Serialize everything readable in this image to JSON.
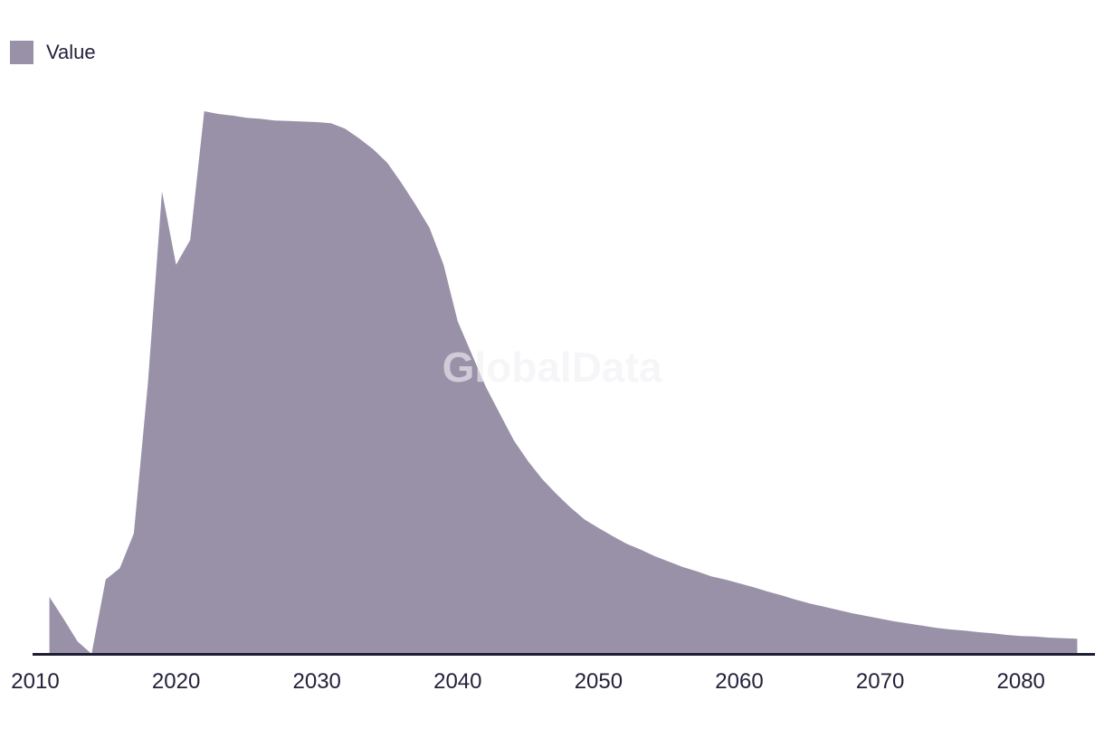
{
  "watermark": "GlobalData",
  "colors": {
    "series": "#9991a8",
    "axis": "#1e1e33",
    "text": "#23223a",
    "watermark": "#f2f1f4",
    "background": "#ffffff"
  },
  "legend": {
    "items": [
      {
        "label": "Value",
        "color": "#9991a8"
      }
    ]
  },
  "chart_data": {
    "type": "area",
    "title": "",
    "xlabel": "",
    "ylabel": "",
    "grid": false,
    "legend_position": "top-left",
    "watermark_text": "GlobalData",
    "x_axis": {
      "ticks": [
        2010,
        2020,
        2030,
        2040,
        2050,
        2060,
        2070,
        2080
      ],
      "min": 2009.7,
      "max": 2085.2
    },
    "y_axis": {
      "visible": false,
      "unit": "arbitrary (normalized, 2022 peak = 100)",
      "min": 0,
      "max": 120
    },
    "series": [
      {
        "name": "Value",
        "color": "#9991a8",
        "points": [
          [
            2011,
            10.5
          ],
          [
            2012,
            6.5
          ],
          [
            2013,
            2.3
          ],
          [
            2014,
            0
          ],
          [
            2015,
            13.7
          ],
          [
            2016,
            15.8
          ],
          [
            2017,
            22.2
          ],
          [
            2018,
            50.0
          ],
          [
            2019,
            85.2
          ],
          [
            2020,
            71.7
          ],
          [
            2021,
            76.3
          ],
          [
            2022,
            100
          ],
          [
            2023,
            99.5
          ],
          [
            2024,
            99.2
          ],
          [
            2025,
            98.8
          ],
          [
            2026,
            98.6
          ],
          [
            2027,
            98.3
          ],
          [
            2028,
            98.2
          ],
          [
            2029,
            98.1
          ],
          [
            2030,
            98.0
          ],
          [
            2031,
            97.8
          ],
          [
            2032,
            96.8
          ],
          [
            2033,
            95.0
          ],
          [
            2034,
            93.0
          ],
          [
            2035,
            90.5
          ],
          [
            2036,
            86.8
          ],
          [
            2037,
            82.8
          ],
          [
            2038,
            78.5
          ],
          [
            2039,
            71.7
          ],
          [
            2040,
            61.3
          ],
          [
            2041,
            55.2
          ],
          [
            2042,
            49.2
          ],
          [
            2043,
            44.2
          ],
          [
            2044,
            39.3
          ],
          [
            2045,
            35.5
          ],
          [
            2046,
            32.2
          ],
          [
            2047,
            29.5
          ],
          [
            2048,
            27.0
          ],
          [
            2049,
            24.8
          ],
          [
            2050,
            23.2
          ],
          [
            2051,
            21.7
          ],
          [
            2052,
            20.3
          ],
          [
            2053,
            19.2
          ],
          [
            2054,
            18.0
          ],
          [
            2055,
            17.0
          ],
          [
            2056,
            16.0
          ],
          [
            2057,
            15.2
          ],
          [
            2058,
            14.3
          ],
          [
            2059,
            13.7
          ],
          [
            2060,
            13.0
          ],
          [
            2061,
            12.3
          ],
          [
            2062,
            11.5
          ],
          [
            2063,
            10.8
          ],
          [
            2064,
            10.0
          ],
          [
            2065,
            9.3
          ],
          [
            2066,
            8.7
          ],
          [
            2067,
            8.1
          ],
          [
            2068,
            7.5
          ],
          [
            2069,
            7.0
          ],
          [
            2070,
            6.5
          ],
          [
            2071,
            6.0
          ],
          [
            2072,
            5.6
          ],
          [
            2073,
            5.2
          ],
          [
            2074,
            4.8
          ],
          [
            2075,
            4.5
          ],
          [
            2076,
            4.3
          ],
          [
            2077,
            4.0
          ],
          [
            2078,
            3.8
          ],
          [
            2079,
            3.5
          ],
          [
            2080,
            3.3
          ],
          [
            2081,
            3.2
          ],
          [
            2082,
            3.0
          ],
          [
            2083,
            2.9
          ],
          [
            2084,
            2.8
          ]
        ]
      }
    ]
  }
}
